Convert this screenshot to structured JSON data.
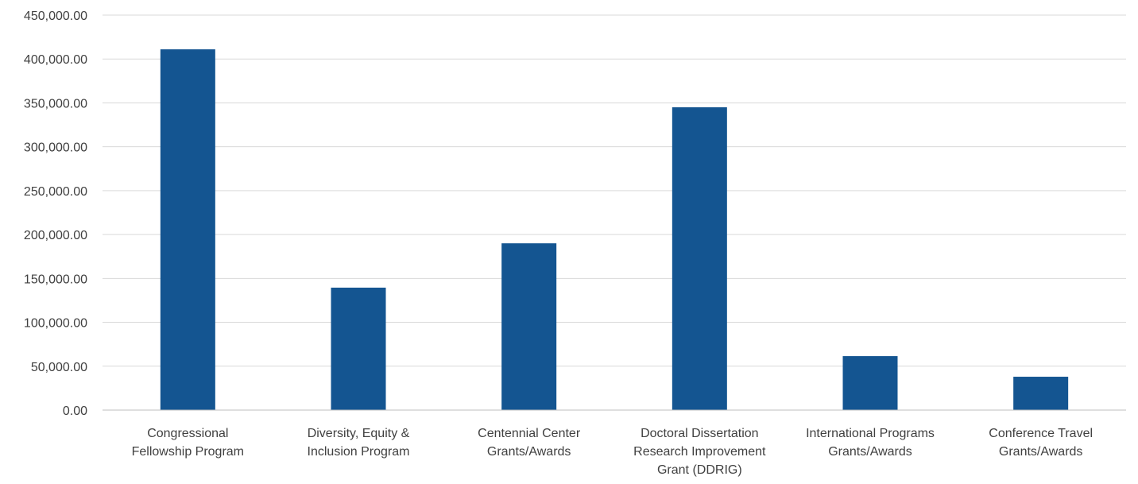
{
  "chart_data": {
    "type": "bar",
    "title": "",
    "xlabel": "",
    "ylabel": "",
    "ylim": [
      0,
      450000
    ],
    "y_ticks": [
      0,
      50000,
      100000,
      150000,
      200000,
      250000,
      300000,
      350000,
      400000,
      450000
    ],
    "y_tick_labels": [
      "0.00",
      "50,000.00",
      "100,000.00",
      "150,000.00",
      "200,000.00",
      "250,000.00",
      "300,000.00",
      "350,000.00",
      "400,000.00",
      "450,000.00"
    ],
    "grid": true,
    "legend": "none",
    "bar_color": "#145591",
    "categories": [
      [
        "Congressional",
        "Fellowship Program"
      ],
      [
        "Diversity, Equity &",
        "Inclusion Program"
      ],
      [
        "Centennial Center",
        "Grants/Awards"
      ],
      [
        "Doctoral Dissertation",
        "Research Improvement",
        "Grant (DDRIG)"
      ],
      [
        "International Programs",
        "Grants/Awards"
      ],
      [
        "Conference Travel",
        "Grants/Awards"
      ]
    ],
    "values": [
      411000,
      139500,
      190000,
      345000,
      61500,
      38000
    ]
  }
}
